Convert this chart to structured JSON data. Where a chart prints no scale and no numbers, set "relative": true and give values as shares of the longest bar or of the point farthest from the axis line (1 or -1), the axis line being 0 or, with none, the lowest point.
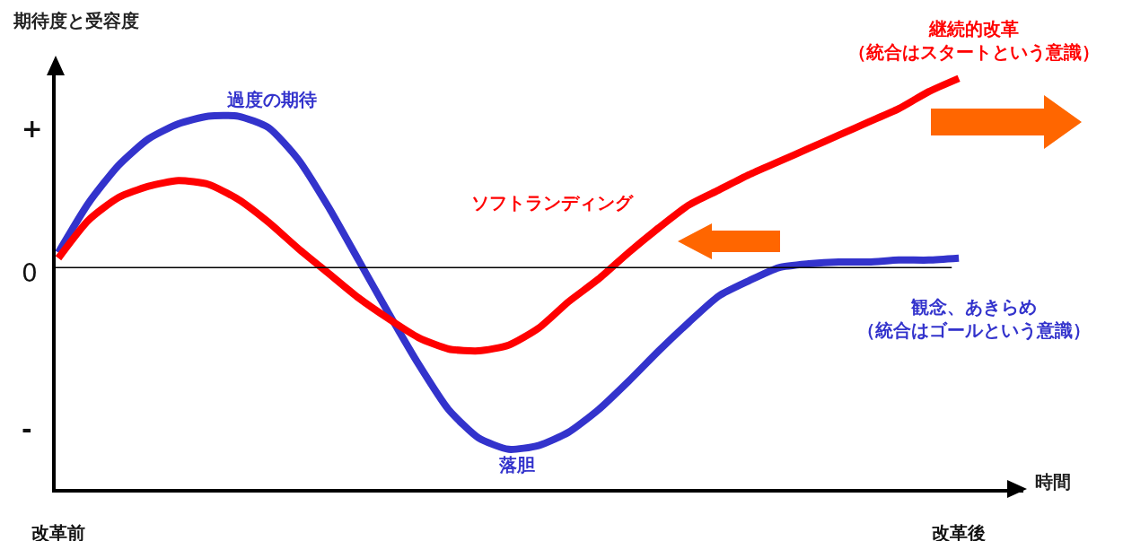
{
  "chart_data": {
    "type": "line",
    "relative": true,
    "ylabel": "期待度と受容度",
    "xlabel": "時間",
    "categories": [
      "改革前",
      null,
      null,
      null,
      null,
      null,
      null,
      null,
      null,
      null,
      null,
      null,
      null,
      null,
      null,
      null,
      null,
      null,
      null,
      null,
      null,
      null,
      null,
      null,
      null,
      null,
      null,
      null,
      null,
      null,
      "改革後"
    ],
    "ref_lines": [
      {
        "axis": "y",
        "value": 0,
        "label": "0",
        "color": "#000000"
      }
    ],
    "series": [
      {
        "name": "観念、あきらめ（統合はゴールという意識）",
        "color": "#3333cc",
        "values": [
          0.08,
          0.34,
          0.54,
          0.68,
          0.76,
          0.8,
          0.8,
          0.74,
          0.57,
          0.32,
          0.04,
          -0.24,
          -0.51,
          -0.75,
          -0.9,
          -0.96,
          -0.94,
          -0.87,
          -0.75,
          -0.6,
          -0.44,
          -0.29,
          -0.15,
          -0.07,
          0.0,
          0.02,
          0.03,
          0.03,
          0.04,
          0.04,
          0.05
        ]
      },
      {
        "name": "継続的改革（統合はスタートという意識）",
        "color": "#ff0000",
        "values": [
          0.05,
          0.25,
          0.37,
          0.43,
          0.46,
          0.44,
          0.36,
          0.24,
          0.1,
          -0.03,
          -0.16,
          -0.27,
          -0.37,
          -0.43,
          -0.44,
          -0.41,
          -0.32,
          -0.18,
          -0.06,
          0.08,
          0.21,
          0.33,
          0.41,
          0.49,
          0.56,
          0.63,
          0.7,
          0.77,
          0.84,
          0.93,
          1.0
        ]
      }
    ],
    "annotations": [
      "過度の期待",
      "ソフトランディング",
      "落胆",
      "+",
      "-"
    ]
  }
}
